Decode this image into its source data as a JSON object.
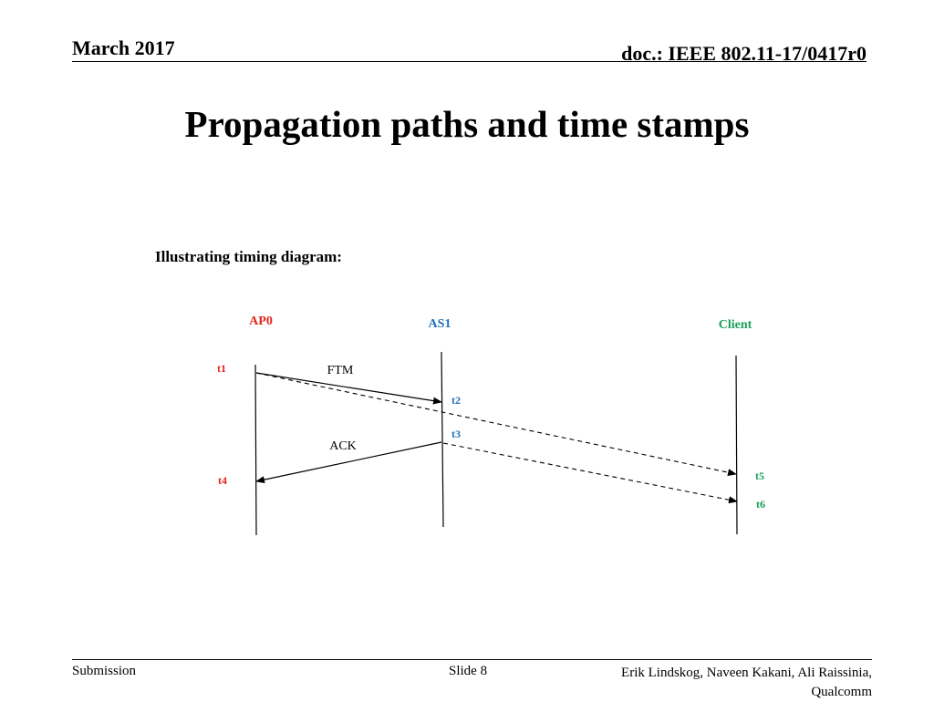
{
  "header": {
    "date": "March 2017",
    "doc": "doc.: IEEE 802.11-17/0417r0"
  },
  "title": "Propagation paths and time stamps",
  "subtitle": "Illustrating timing diagram:",
  "diagram": {
    "nodes": [
      {
        "name": "AP0",
        "color": "#e3231a"
      },
      {
        "name": "AS1",
        "color": "#1f6fba"
      },
      {
        "name": "Client",
        "color": "#16a05a"
      }
    ],
    "messages": [
      {
        "label": "FTM",
        "from": "AP0",
        "to": "AS1",
        "style": "solid"
      },
      {
        "label": "ACK",
        "from": "AS1",
        "to": "AP0",
        "style": "solid"
      },
      {
        "label": "",
        "from": "AP0",
        "to": "Client",
        "style": "dashed"
      },
      {
        "label": "",
        "from": "AS1",
        "to": "Client",
        "style": "dashed"
      }
    ],
    "timestamps": [
      {
        "label": "t1",
        "node": "AP0"
      },
      {
        "label": "t2",
        "node": "AS1"
      },
      {
        "label": "t3",
        "node": "AS1"
      },
      {
        "label": "t4",
        "node": "AP0"
      },
      {
        "label": "t5",
        "node": "Client"
      },
      {
        "label": "t6",
        "node": "Client"
      }
    ]
  },
  "footer": {
    "left": "Submission",
    "middle": "Slide 8",
    "right_line1": "Erik Lindskog, Naveen Kakani, Ali Raissinia,",
    "right_line2": "Qualcomm"
  }
}
